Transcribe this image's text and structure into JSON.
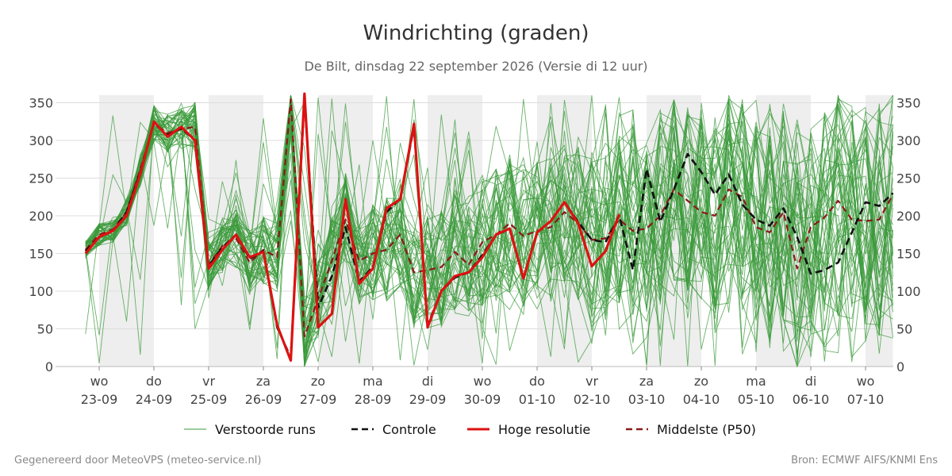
{
  "chart_data": {
    "type": "line",
    "title": "Windrichting (graden)",
    "subtitle": "De Bilt, dinsdag 22 september 2026 (Versie di 12 uur)",
    "ylim": [
      0,
      360
    ],
    "yticks": [
      0,
      50,
      100,
      150,
      200,
      250,
      300,
      350
    ],
    "x_range_days": [
      -0.8,
      14.5
    ],
    "x_ticks": [
      {
        "day": 0,
        "weekday": "wo",
        "date": "23-09"
      },
      {
        "day": 1,
        "weekday": "do",
        "date": "24-09"
      },
      {
        "day": 2,
        "weekday": "vr",
        "date": "25-09"
      },
      {
        "day": 3,
        "weekday": "za",
        "date": "26-09"
      },
      {
        "day": 4,
        "weekday": "zo",
        "date": "27-09"
      },
      {
        "day": 5,
        "weekday": "ma",
        "date": "28-09"
      },
      {
        "day": 6,
        "weekday": "di",
        "date": "29-09"
      },
      {
        "day": 7,
        "weekday": "wo",
        "date": "30-09"
      },
      {
        "day": 8,
        "weekday": "do",
        "date": "01-10"
      },
      {
        "day": 9,
        "weekday": "vr",
        "date": "02-10"
      },
      {
        "day": 10,
        "weekday": "za",
        "date": "03-10"
      },
      {
        "day": 11,
        "weekday": "zo",
        "date": "04-10"
      },
      {
        "day": 12,
        "weekday": "ma",
        "date": "05-10"
      },
      {
        "day": 13,
        "weekday": "di",
        "date": "06-10"
      },
      {
        "day": 14,
        "weekday": "wo",
        "date": "07-10"
      }
    ],
    "shaded_bands_days": [
      [
        0,
        1
      ],
      [
        2,
        3
      ],
      [
        4,
        5
      ],
      [
        6,
        7
      ],
      [
        8,
        9
      ],
      [
        10,
        11
      ],
      [
        12,
        13
      ],
      [
        14,
        14.5
      ]
    ],
    "grid": true,
    "legend_position": "bottom",
    "series": [
      {
        "name": "Controle",
        "color": "#111111",
        "style": "dashed",
        "x": [
          -0.25,
          0,
          0.25,
          0.5,
          0.75,
          1,
          1.25,
          1.5,
          1.75,
          2,
          2.25,
          2.5,
          2.75,
          3,
          3.25,
          3.5,
          3.75,
          4,
          4.25,
          4.5,
          4.75,
          5,
          5.25,
          5.5,
          5.75,
          6,
          6.25,
          6.5,
          6.75,
          7,
          7.25,
          7.5,
          7.75,
          8,
          8.25,
          8.5,
          8.75,
          9,
          9.25,
          9.5,
          9.75,
          10,
          10.25,
          10.5,
          10.75,
          11,
          11.25,
          11.5,
          11.75,
          12,
          12.25,
          12.5,
          12.75,
          13,
          13.25,
          13.5,
          13.75,
          14,
          14.25,
          14.5
        ],
        "values": [
          153,
          172,
          180,
          205,
          258,
          323,
          307,
          316,
          300,
          133,
          158,
          175,
          143,
          153,
          52,
          12,
          355,
          78,
          120,
          185,
          113,
          132,
          205,
          223,
          318,
          55,
          100,
          118,
          125,
          148,
          175,
          182,
          118,
          178,
          193,
          218,
          192,
          168,
          165,
          200,
          128,
          262,
          192,
          235,
          282,
          258,
          228,
          255,
          215,
          195,
          187,
          210,
          172,
          123,
          128,
          138,
          178,
          218,
          213,
          230
        ]
      },
      {
        "name": "Hoge resolutie",
        "color": "#dd1111",
        "style": "solid",
        "x": [
          -0.25,
          0,
          0.25,
          0.5,
          0.75,
          1,
          1.25,
          1.5,
          1.75,
          2,
          2.25,
          2.5,
          2.75,
          3,
          3.25,
          3.5,
          3.75,
          4,
          4.25,
          4.5,
          4.75,
          5,
          5.25,
          5.5,
          5.75,
          6,
          6.25,
          6.5,
          6.75,
          7,
          7.25,
          7.5,
          7.75,
          8,
          8.25,
          8.5,
          8.75,
          9,
          9.25,
          9.5
        ],
        "values": [
          150,
          172,
          180,
          200,
          255,
          325,
          305,
          318,
          300,
          130,
          155,
          175,
          145,
          152,
          55,
          8,
          362,
          52,
          70,
          222,
          110,
          130,
          210,
          222,
          322,
          52,
          100,
          120,
          125,
          145,
          175,
          183,
          117,
          178,
          193,
          218,
          190,
          133,
          153,
          202
        ]
      },
      {
        "name": "Middelste (P50)",
        "color": "#8b1a1a",
        "style": "dashed",
        "x": [
          -0.25,
          0,
          0.25,
          0.5,
          0.75,
          1,
          1.25,
          1.5,
          1.75,
          2,
          2.25,
          2.5,
          2.75,
          3,
          3.25,
          3.5,
          3.75,
          4,
          4.25,
          4.5,
          4.75,
          5,
          5.25,
          5.5,
          5.75,
          6,
          6.25,
          6.5,
          6.75,
          7,
          7.25,
          7.5,
          7.75,
          8,
          8.25,
          8.5,
          8.75,
          9,
          9.25,
          9.5,
          9.75,
          10,
          10.25,
          10.5,
          10.75,
          11,
          11.25,
          11.5,
          11.75,
          12,
          12.25,
          12.5,
          12.75,
          13,
          13.25,
          13.5,
          13.75,
          14,
          14.25,
          14.5
        ],
        "values": [
          155,
          175,
          182,
          205,
          262,
          322,
          310,
          315,
          318,
          135,
          160,
          170,
          138,
          155,
          145,
          355,
          40,
          90,
          140,
          195,
          140,
          150,
          155,
          175,
          125,
          128,
          132,
          152,
          135,
          165,
          175,
          190,
          173,
          180,
          185,
          205,
          190,
          168,
          170,
          195,
          180,
          183,
          200,
          235,
          220,
          205,
          200,
          235,
          225,
          185,
          178,
          205,
          130,
          185,
          198,
          220,
          195,
          193,
          195,
          228
        ]
      }
    ],
    "ensemble": {
      "name": "Verstoorde runs",
      "color": "#3a9a3a",
      "members": 50
    },
    "legend": [
      {
        "label": "Verstoorde runs",
        "color": "#3a9a3a",
        "style": "thin"
      },
      {
        "label": "Controle",
        "color": "#111111",
        "style": "dashed"
      },
      {
        "label": "Hoge resolutie",
        "color": "#dd1111",
        "style": "solid"
      },
      {
        "label": "Middelste (P50)",
        "color": "#8b1a1a",
        "style": "dashed"
      }
    ]
  },
  "footer": {
    "left": "Gegenereerd door MeteoVPS (meteo-service.nl)",
    "right": "Bron: ECMWF AIFS/KNMI Ens"
  }
}
